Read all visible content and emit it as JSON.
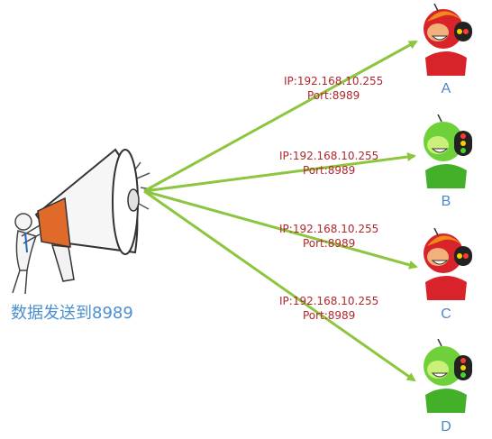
{
  "caption": "数据发送到8989",
  "edges": [
    {
      "ip": "IP:192.168.10.255",
      "port": "Port:8989"
    },
    {
      "ip": "IP:192.168.10.255",
      "port": "Port:8989"
    },
    {
      "ip": "IP:192.168.10.255",
      "port": "Port:8989"
    },
    {
      "ip": "IP:192.168.10.255",
      "port": "Port:8989"
    }
  ],
  "nodes": [
    {
      "label": "A",
      "color": "red"
    },
    {
      "label": "B",
      "color": "green"
    },
    {
      "label": "C",
      "color": "red"
    },
    {
      "label": "D",
      "color": "green"
    }
  ],
  "colors": {
    "arrow": "#8cc63f",
    "label": "#b0272d",
    "caption": "#4a8fd0",
    "node_label": "#4a86c8"
  }
}
